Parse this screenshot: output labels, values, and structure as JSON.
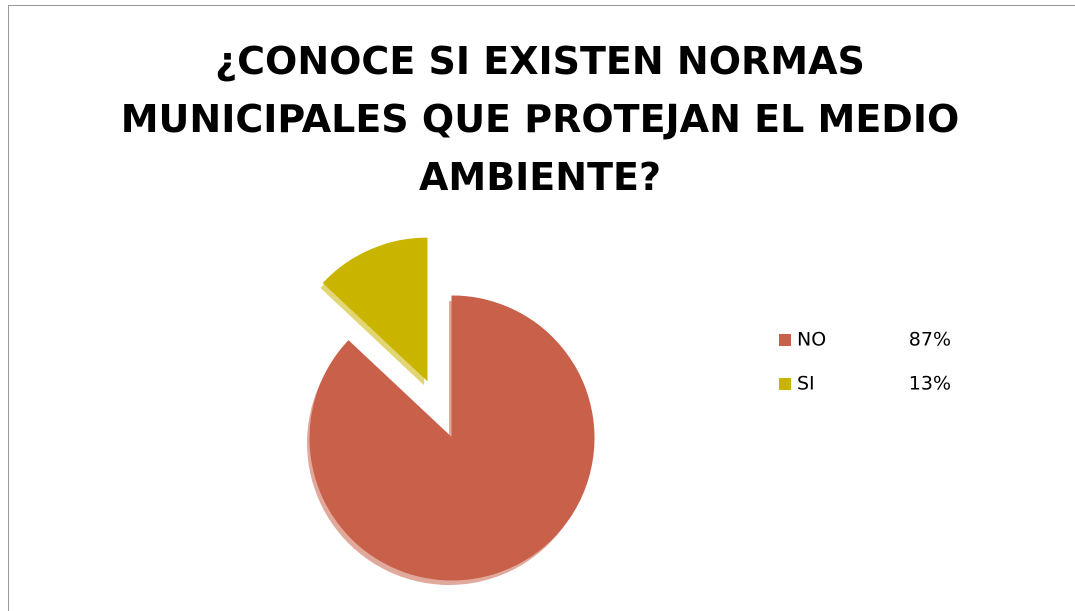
{
  "chart_data": {
    "type": "pie",
    "title": "¿CONOCE SI EXISTEN NORMAS MUNICIPALES QUE PROTEJAN EL MEDIO AMBIENTE?",
    "categories": [
      "NO",
      "SI"
    ],
    "values": [
      87,
      13
    ],
    "value_labels": [
      "87%",
      "13%"
    ],
    "colors": [
      "#c8604a",
      "#c9b400"
    ],
    "explode": [
      false,
      true
    ],
    "legend": "right"
  }
}
